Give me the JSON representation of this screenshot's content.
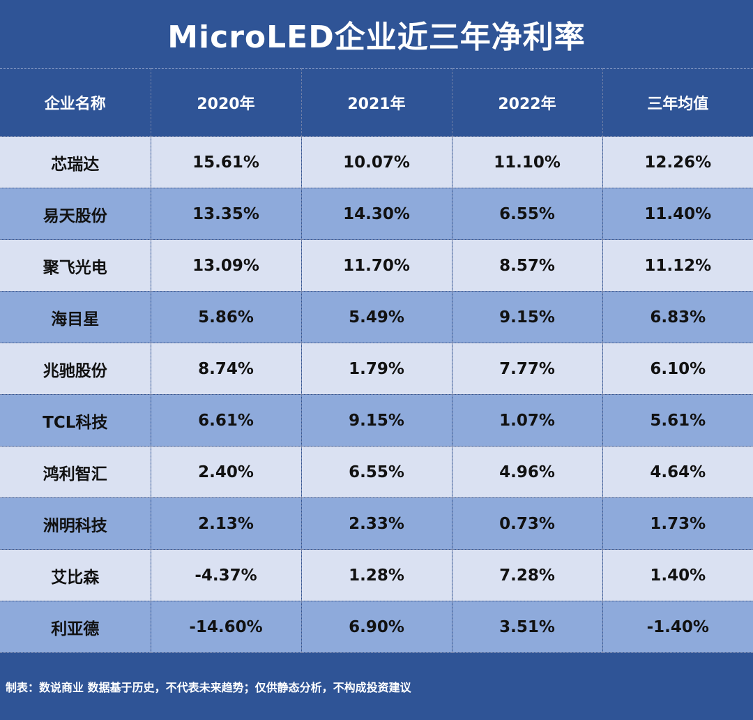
{
  "title": "MicroLED企业近三年净利率",
  "table": {
    "headers": [
      "企业名称",
      "2020年",
      "2021年",
      "2022年",
      "三年均值"
    ],
    "rows": [
      [
        "芯瑞达",
        "15.61%",
        "10.07%",
        "11.10%",
        "12.26%"
      ],
      [
        "易天股份",
        "13.35%",
        "14.30%",
        "6.55%",
        "11.40%"
      ],
      [
        "聚飞光电",
        "13.09%",
        "11.70%",
        "8.57%",
        "11.12%"
      ],
      [
        "海目星",
        "5.86%",
        "5.49%",
        "9.15%",
        "6.83%"
      ],
      [
        "兆驰股份",
        "8.74%",
        "1.79%",
        "7.77%",
        "6.10%"
      ],
      [
        "TCL科技",
        "6.61%",
        "9.15%",
        "1.07%",
        "5.61%"
      ],
      [
        "鸿利智汇",
        "2.40%",
        "6.55%",
        "4.96%",
        "4.64%"
      ],
      [
        "洲明科技",
        "2.13%",
        "2.33%",
        "0.73%",
        "1.73%"
      ],
      [
        "艾比森",
        "-4.37%",
        "1.28%",
        "7.28%",
        "1.40%"
      ],
      [
        "利亚德",
        "-14.60%",
        "6.90%",
        "3.51%",
        "-1.40%"
      ]
    ]
  },
  "footer": "制表：数说商业 数据基于历史，不代表未来趋势；仅供静态分析，不构成投资建议",
  "colors": {
    "header_bg": "#2F5496",
    "row_light": "#DAE1F2",
    "row_dark": "#8EAADB"
  }
}
